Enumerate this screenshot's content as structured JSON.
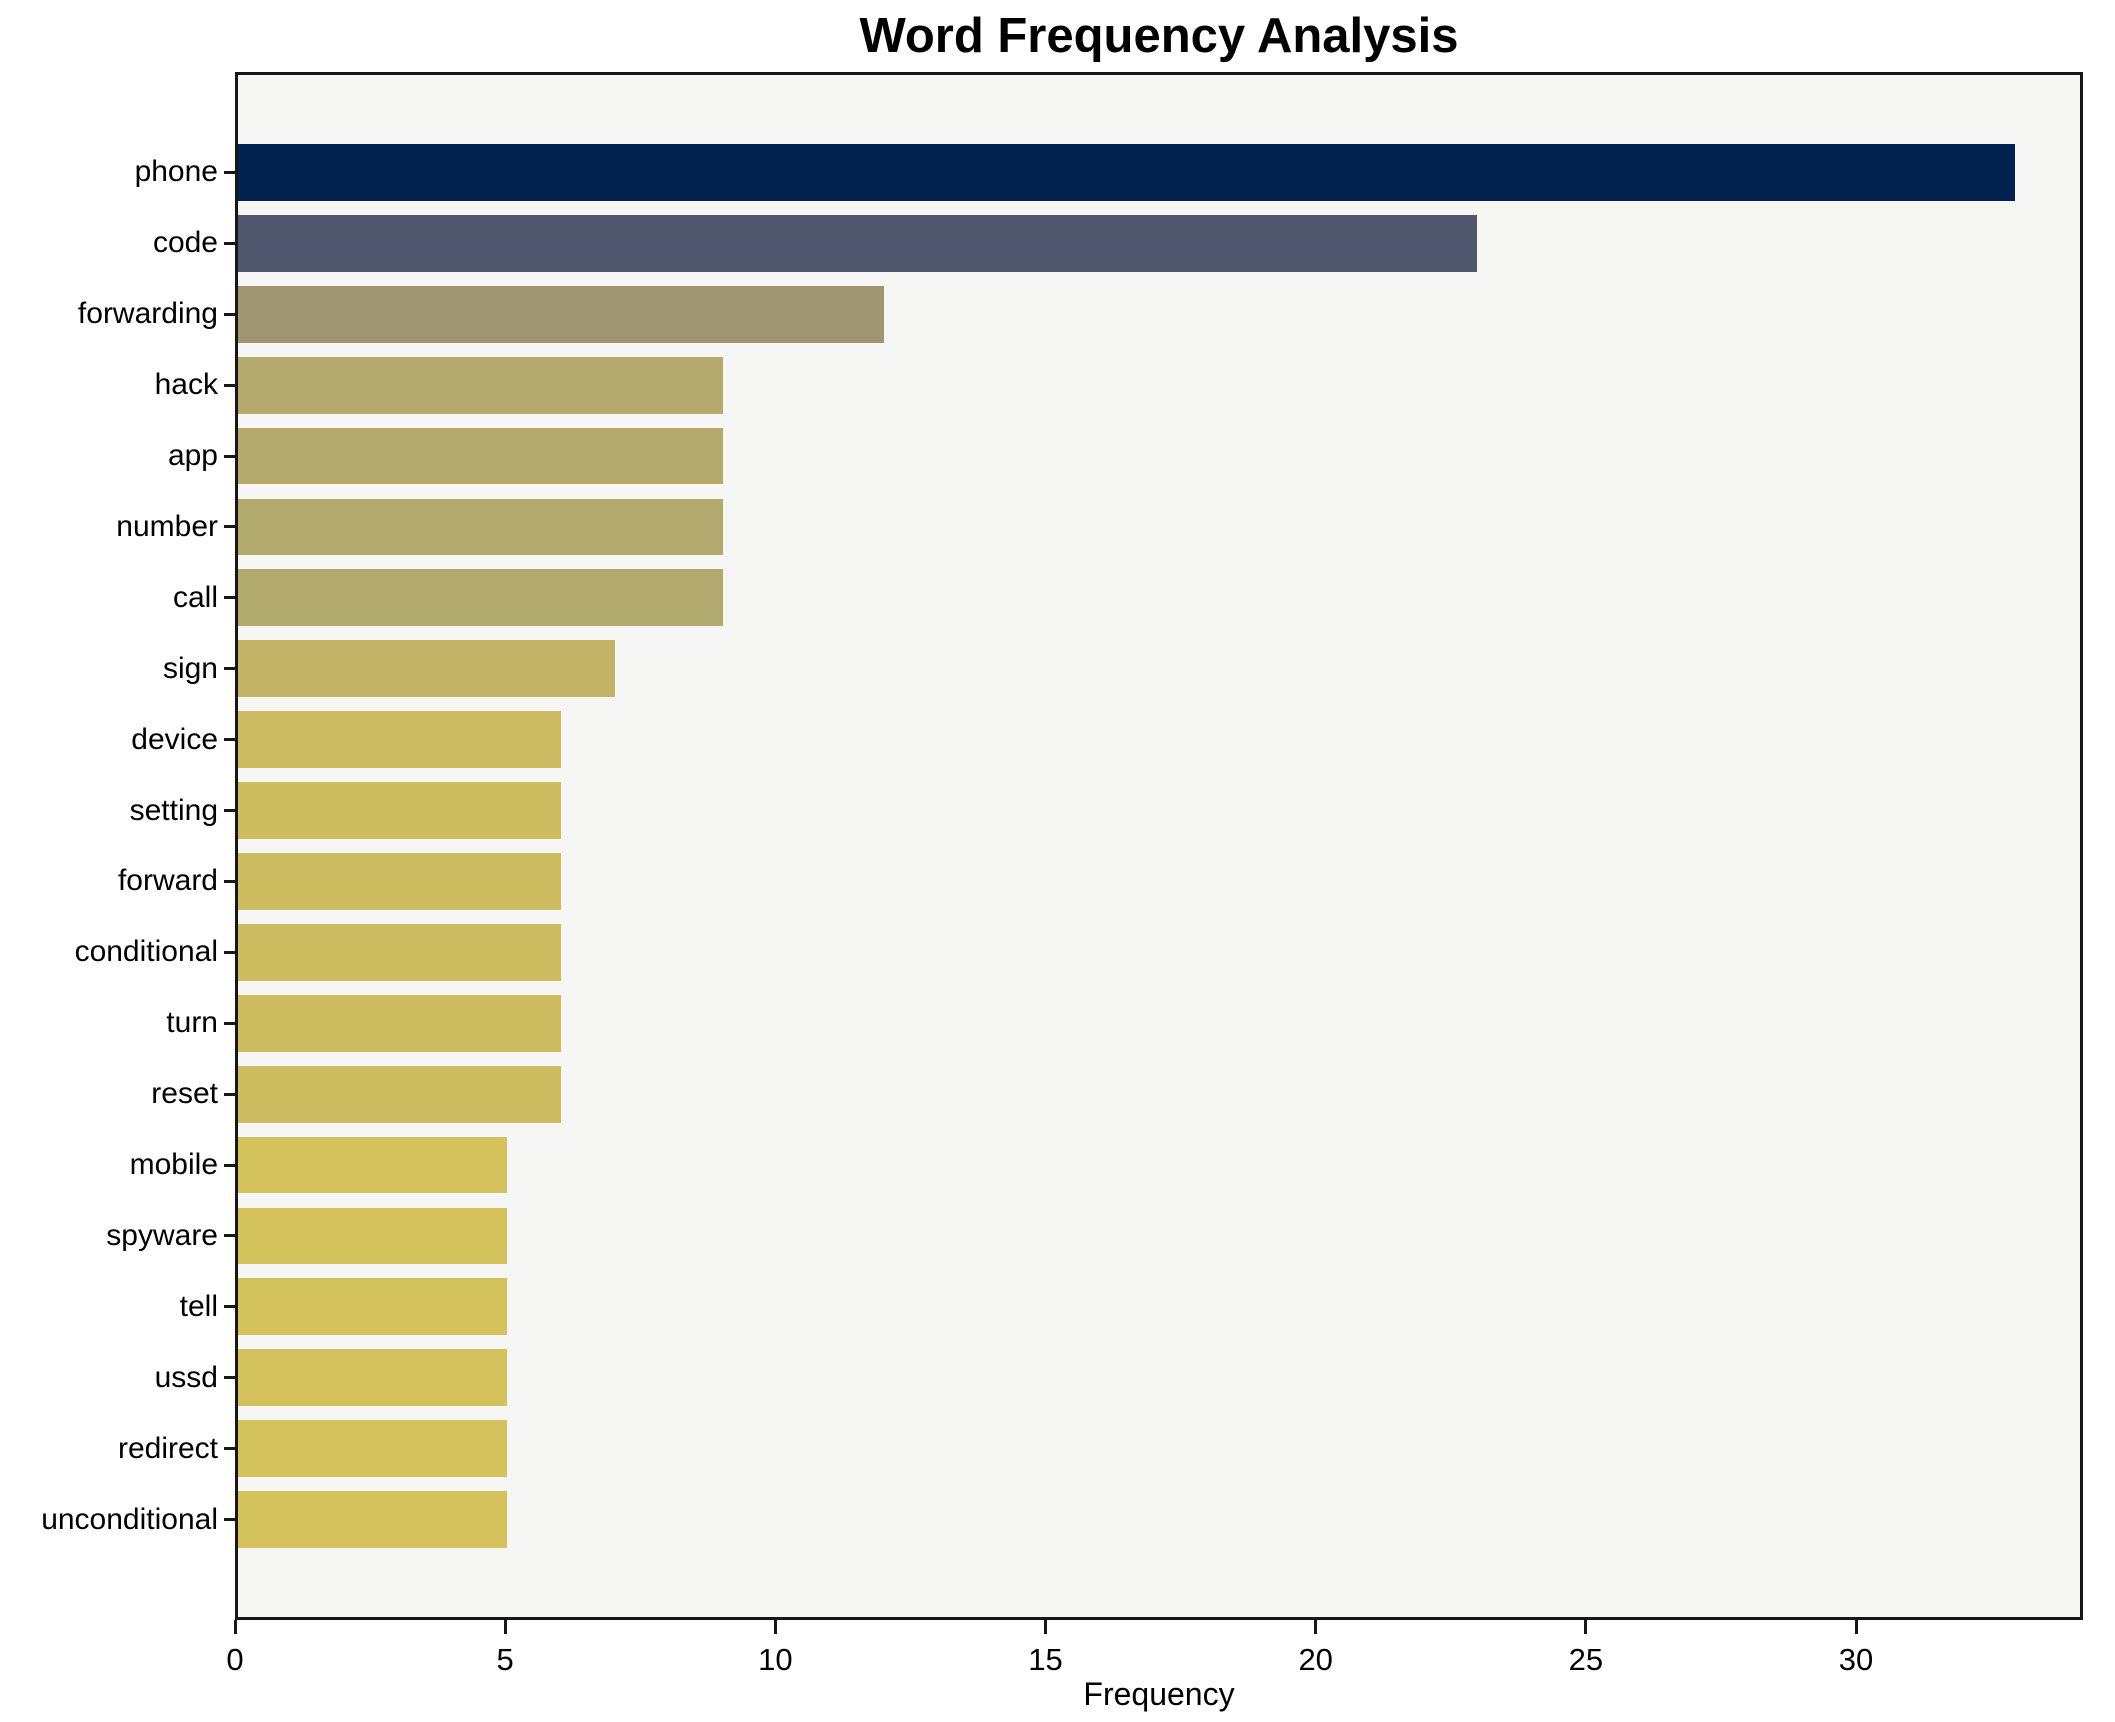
{
  "chart_data": {
    "type": "bar",
    "orientation": "horizontal",
    "title": "Word Frequency Analysis",
    "xlabel": "Frequency",
    "ylabel": "",
    "categories": [
      "phone",
      "code",
      "forwarding",
      "hack",
      "app",
      "number",
      "call",
      "sign",
      "device",
      "setting",
      "forward",
      "conditional",
      "turn",
      "reset",
      "mobile",
      "spyware",
      "tell",
      "ussd",
      "redirect",
      "unconditional"
    ],
    "values": [
      33,
      23,
      12,
      9,
      9,
      9,
      9,
      7,
      6,
      6,
      6,
      6,
      6,
      6,
      5,
      5,
      5,
      5,
      5,
      5
    ],
    "bar_colors": [
      "#01214f",
      "#4f576f",
      "#9e9671",
      "#b4aa6e",
      "#b4aa6e",
      "#b2a96e",
      "#b2a96e",
      "#c2b366",
      "#ccbb60",
      "#cdbc60",
      "#cdbc60",
      "#cdbc60",
      "#cdbc60",
      "#cdbc60",
      "#d4c35d",
      "#d4c35d",
      "#d4c35d",
      "#d4c35d",
      "#d4c35d",
      "#d4c35d"
    ],
    "x_ticks": [
      0,
      5,
      10,
      15,
      20,
      25,
      30
    ],
    "xlim": [
      0,
      34.2
    ],
    "grid": false,
    "legend": false,
    "colors": {
      "figure_bg": "#ffffff",
      "plot_bg": "#f6f6f4",
      "spine": "#171717",
      "text": "#000000"
    }
  }
}
